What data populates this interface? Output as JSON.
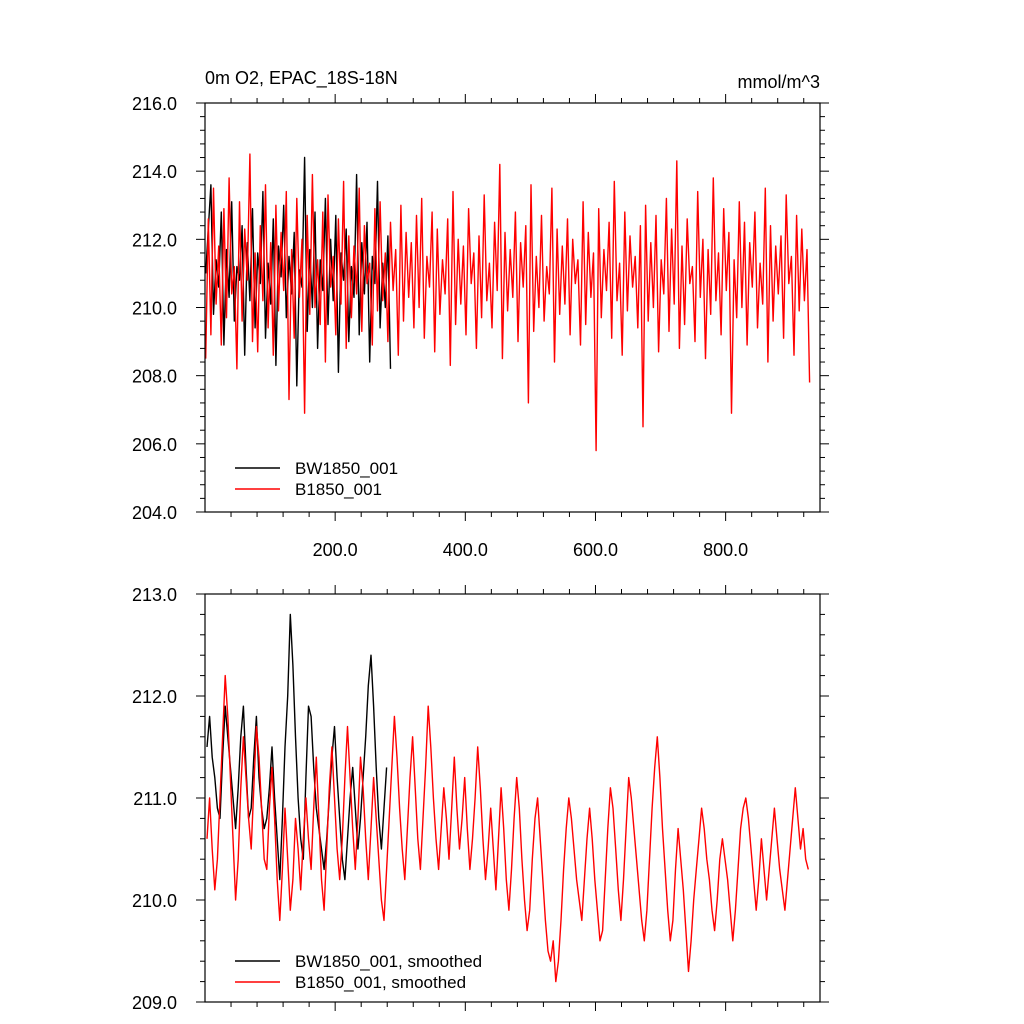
{
  "chart_data": [
    {
      "type": "line",
      "title": "0m O2, EPAC_18S-18N",
      "units": "mmol/m^3",
      "xlabel": "",
      "ylabel": "",
      "xlim": [
        0,
        945
      ],
      "ylim": [
        204,
        216
      ],
      "yticks": [
        204,
        206,
        208,
        210,
        212,
        214,
        216
      ],
      "ytick_labels": [
        "204.0",
        "206.0",
        "208.0",
        "210.0",
        "212.0",
        "214.0",
        "216.0"
      ],
      "xticks": [
        200,
        400,
        600,
        800
      ],
      "xtick_labels": [
        "200.0",
        "400.0",
        "600.0",
        "800.0"
      ],
      "grid": false,
      "legend_position": "bottom-left",
      "series": [
        {
          "name": "BW1850_001",
          "color": "#000000",
          "x_start": 1,
          "x_step": 4,
          "values": [
            211.0,
            212.3,
            213.6,
            209.8,
            211.4,
            210.6,
            212.8,
            208.9,
            211.7,
            210.3,
            213.1,
            209.6,
            211.2,
            210.8,
            212.4,
            208.6,
            211.9,
            210.2,
            212.9,
            209.4,
            211.6,
            210.7,
            213.4,
            209.1,
            211.3,
            210.1,
            212.6,
            208.3,
            211.8,
            210.9,
            213.0,
            209.7,
            211.5,
            210.4,
            212.2,
            207.7,
            211.1,
            210.6,
            214.4,
            209.3,
            211.7,
            210.0,
            212.8,
            208.8,
            211.4,
            210.5,
            213.2,
            209.5,
            212.0,
            210.2,
            212.7,
            208.1,
            211.6,
            210.8,
            212.3,
            209.0,
            211.2,
            210.3,
            213.9,
            209.2,
            211.9,
            210.4,
            212.5,
            208.4,
            211.5,
            210.7,
            213.7,
            209.4,
            211.3,
            210.0,
            212.1,
            208.2
          ]
        },
        {
          "name": "B1850_001",
          "color": "#ff0000",
          "x_start": 1,
          "x_step": 4,
          "values": [
            208.5,
            212.6,
            209.2,
            213.5,
            210.1,
            211.8,
            208.9,
            212.9,
            209.7,
            213.8,
            210.4,
            211.2,
            208.2,
            213.1,
            209.6,
            212.3,
            210.8,
            214.5,
            209.0,
            211.6,
            208.7,
            212.4,
            210.2,
            213.6,
            209.4,
            211.9,
            208.6,
            213.0,
            209.9,
            212.2,
            210.5,
            213.4,
            207.3,
            211.7,
            209.1,
            213.2,
            210.3,
            212.0,
            206.9,
            212.7,
            209.8,
            213.9,
            210.0,
            211.4,
            209.5,
            212.8,
            208.4,
            213.3,
            210.6,
            211.5,
            209.2,
            212.6,
            210.1,
            213.7,
            208.8,
            212.1,
            209.7,
            211.8,
            210.4,
            213.5,
            209.3,
            212.4,
            210.7,
            211.3,
            208.9,
            212.9,
            209.9,
            213.1,
            210.2,
            211.6,
            209.0,
            212.5,
            210.5,
            211.7,
            208.6,
            213.0,
            209.6,
            212.2,
            210.3,
            211.9,
            209.4,
            212.7,
            210.0,
            213.2,
            209.1,
            211.5,
            210.6,
            212.8,
            208.7,
            212.3,
            209.8,
            211.4,
            210.4,
            212.6,
            208.3,
            213.4,
            209.5,
            212.0,
            210.1,
            211.8,
            209.2,
            212.9,
            210.7,
            211.6,
            208.8,
            212.1,
            209.7,
            213.3,
            210.2,
            211.3,
            209.4,
            212.5,
            210.5,
            214.2,
            208.5,
            212.2,
            209.9,
            211.7,
            210.3,
            212.8,
            209.0,
            211.9,
            210.6,
            212.4,
            207.2,
            213.6,
            209.3,
            211.5,
            210.0,
            212.7,
            209.6,
            211.2,
            210.4,
            213.5,
            208.4,
            212.3,
            209.8,
            211.8,
            210.1,
            212.6,
            209.2,
            212.0,
            210.7,
            211.4,
            208.9,
            213.1,
            209.5,
            212.2,
            210.3,
            211.6,
            205.8,
            212.9,
            209.7,
            211.7,
            210.5,
            212.5,
            209.1,
            213.7,
            210.2,
            211.3,
            208.6,
            212.8,
            209.9,
            212.1,
            210.6,
            211.5,
            209.4,
            212.4,
            206.5,
            213.0,
            209.6,
            211.9,
            210.0,
            212.7,
            208.7,
            211.4,
            210.4,
            213.2,
            209.3,
            212.3,
            210.1,
            214.3,
            208.8,
            211.8,
            209.5,
            212.6,
            210.7,
            211.2,
            209.0,
            213.4,
            210.3,
            212.0,
            208.5,
            211.7,
            209.8,
            213.8,
            210.2,
            211.6,
            209.2,
            212.9,
            210.5,
            212.2,
            206.9,
            211.4,
            209.7,
            213.1,
            210.0,
            212.5,
            208.9,
            211.9,
            210.6,
            212.8,
            209.4,
            211.3,
            210.1,
            213.5,
            208.4,
            212.4,
            209.6,
            211.8,
            210.4,
            212.1,
            209.1,
            213.3,
            210.7,
            211.5,
            208.6,
            212.7,
            209.9,
            212.3,
            210.2,
            211.7,
            207.8
          ]
        }
      ]
    },
    {
      "type": "line",
      "title": "",
      "xlabel": "",
      "ylabel": "",
      "xlim": [
        0,
        945
      ],
      "ylim": [
        209,
        213
      ],
      "yticks": [
        209,
        210,
        211,
        212,
        213
      ],
      "ytick_labels": [
        "209.0",
        "210.0",
        "211.0",
        "212.0",
        "213.0"
      ],
      "grid": false,
      "legend_position": "bottom-left",
      "series": [
        {
          "name": "BW1850_001, smoothed",
          "color": "#000000",
          "x_start": 3,
          "x_step": 4,
          "values": [
            211.5,
            211.8,
            211.4,
            211.2,
            210.9,
            210.8,
            211.4,
            211.9,
            211.6,
            211.3,
            211.0,
            210.7,
            211.1,
            211.6,
            211.9,
            211.3,
            210.8,
            210.9,
            211.4,
            211.8,
            211.2,
            210.9,
            210.7,
            210.8,
            211.1,
            211.5,
            211.0,
            210.6,
            210.2,
            210.8,
            211.5,
            212.0,
            212.8,
            212.3,
            211.6,
            211.0,
            210.6,
            210.4,
            211.2,
            211.9,
            211.8,
            211.3,
            210.9,
            210.7,
            210.5,
            210.3,
            210.6,
            211.0,
            211.4,
            211.7,
            211.2,
            210.8,
            210.4,
            210.2,
            210.6,
            211.0,
            211.3,
            210.9,
            210.5,
            210.8,
            211.2,
            211.6,
            212.1,
            212.4,
            211.9,
            211.3,
            210.8,
            210.5,
            210.9,
            211.3
          ]
        },
        {
          "name": "B1850_001, smoothed",
          "color": "#ff0000",
          "x_start": 3,
          "x_step": 4,
          "values": [
            210.6,
            211.0,
            210.5,
            210.1,
            210.4,
            211.0,
            211.6,
            212.2,
            211.8,
            211.2,
            210.6,
            210.0,
            210.4,
            211.1,
            211.6,
            211.2,
            210.8,
            210.5,
            211.1,
            211.7,
            211.4,
            210.9,
            210.4,
            210.3,
            210.9,
            211.3,
            210.8,
            210.2,
            209.8,
            210.3,
            210.9,
            210.4,
            209.9,
            210.2,
            210.8,
            210.5,
            210.1,
            210.6,
            211.0,
            210.6,
            210.3,
            210.9,
            211.4,
            210.8,
            210.2,
            209.9,
            210.5,
            211.1,
            211.5,
            211.0,
            210.5,
            210.2,
            210.6,
            211.2,
            211.7,
            211.2,
            210.7,
            210.3,
            210.8,
            211.4,
            211.1,
            210.6,
            210.2,
            210.7,
            211.2,
            210.8,
            210.4,
            210.0,
            209.8,
            210.3,
            210.8,
            211.3,
            211.8,
            211.4,
            210.9,
            210.5,
            210.2,
            210.7,
            211.2,
            211.6,
            211.1,
            210.6,
            210.3,
            210.8,
            211.3,
            211.9,
            211.5,
            211.0,
            210.6,
            210.3,
            210.7,
            211.1,
            210.8,
            210.4,
            210.9,
            211.4,
            210.9,
            210.5,
            210.8,
            211.2,
            210.7,
            210.3,
            210.6,
            211.0,
            211.5,
            211.1,
            210.6,
            210.2,
            210.5,
            210.9,
            210.5,
            210.1,
            210.6,
            211.1,
            210.7,
            210.2,
            209.9,
            210.3,
            210.8,
            211.2,
            210.9,
            210.4,
            210.0,
            209.7,
            209.9,
            210.4,
            210.8,
            211.0,
            210.6,
            210.2,
            209.8,
            209.5,
            209.4,
            209.6,
            209.2,
            209.4,
            209.8,
            210.3,
            210.7,
            211.0,
            210.8,
            210.5,
            210.2,
            210.0,
            209.8,
            210.2,
            210.6,
            210.9,
            210.6,
            210.2,
            209.9,
            209.6,
            209.7,
            210.2,
            210.7,
            211.1,
            210.9,
            210.5,
            210.1,
            209.8,
            210.2,
            210.7,
            211.2,
            211.0,
            210.7,
            210.4,
            210.1,
            209.8,
            209.6,
            209.9,
            210.4,
            210.9,
            211.3,
            211.6,
            211.2,
            210.7,
            210.3,
            209.9,
            209.6,
            209.8,
            210.3,
            210.7,
            210.4,
            210.1,
            209.7,
            209.3,
            209.6,
            210.0,
            210.3,
            210.6,
            210.9,
            210.7,
            210.4,
            210.2,
            209.9,
            209.7,
            210.0,
            210.4,
            210.6,
            210.4,
            210.2,
            209.9,
            209.6,
            209.9,
            210.3,
            210.7,
            210.9,
            211.0,
            210.8,
            210.5,
            210.2,
            209.9,
            210.2,
            210.6,
            210.3,
            210.0,
            210.3,
            210.6,
            210.9,
            210.6,
            210.3,
            210.1,
            209.9,
            210.2,
            210.5,
            210.8,
            211.1,
            210.8,
            210.5,
            210.7,
            210.4,
            210.3
          ]
        }
      ]
    }
  ]
}
